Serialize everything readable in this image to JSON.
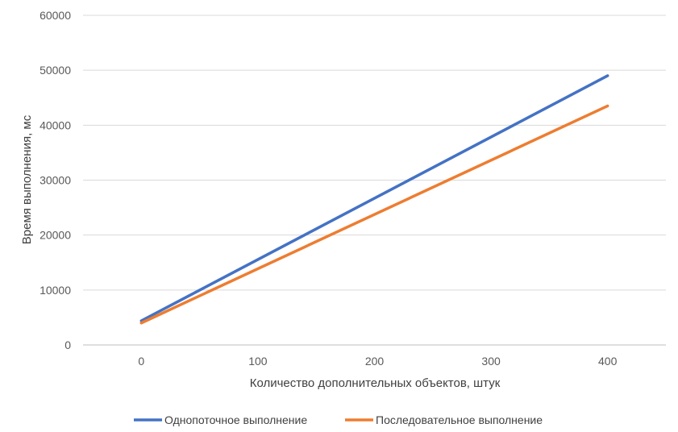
{
  "chart_data": {
    "type": "line",
    "title": "",
    "xlabel": "Количество дополнительных объектов, штук",
    "ylabel": "Время выполнения, мс",
    "x": [
      0,
      400
    ],
    "xticks": [
      0,
      100,
      200,
      300,
      400
    ],
    "yticks": [
      0,
      10000,
      20000,
      30000,
      40000,
      50000,
      60000
    ],
    "xlim": [
      -50,
      450
    ],
    "ylim": [
      0,
      60000
    ],
    "grid": true,
    "legend_position": "bottom",
    "series": [
      {
        "name": "Однопоточное выполнение",
        "color": "#4472C4",
        "values": [
          4400,
          49000
        ]
      },
      {
        "name": "Последовательное выполнение",
        "color": "#ED7D31",
        "values": [
          4000,
          43500
        ]
      }
    ]
  }
}
